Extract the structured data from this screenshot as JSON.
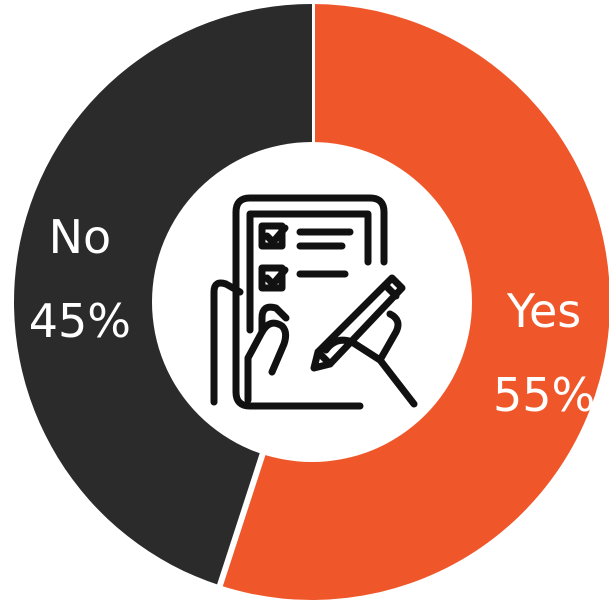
{
  "chart_data": {
    "type": "pie",
    "style": "donut",
    "categories": [
      "Yes",
      "No"
    ],
    "values": [
      55,
      45
    ],
    "slice_labels": [
      {
        "name": "Yes",
        "percent": "55%"
      },
      {
        "name": "No",
        "percent": "45%"
      }
    ],
    "colors": [
      "#ef572a",
      "#2b2b2b"
    ],
    "center_icon": "checklist-tablet-hand-pen-icon",
    "icon_color": "#111111",
    "background": "#ffffff"
  }
}
